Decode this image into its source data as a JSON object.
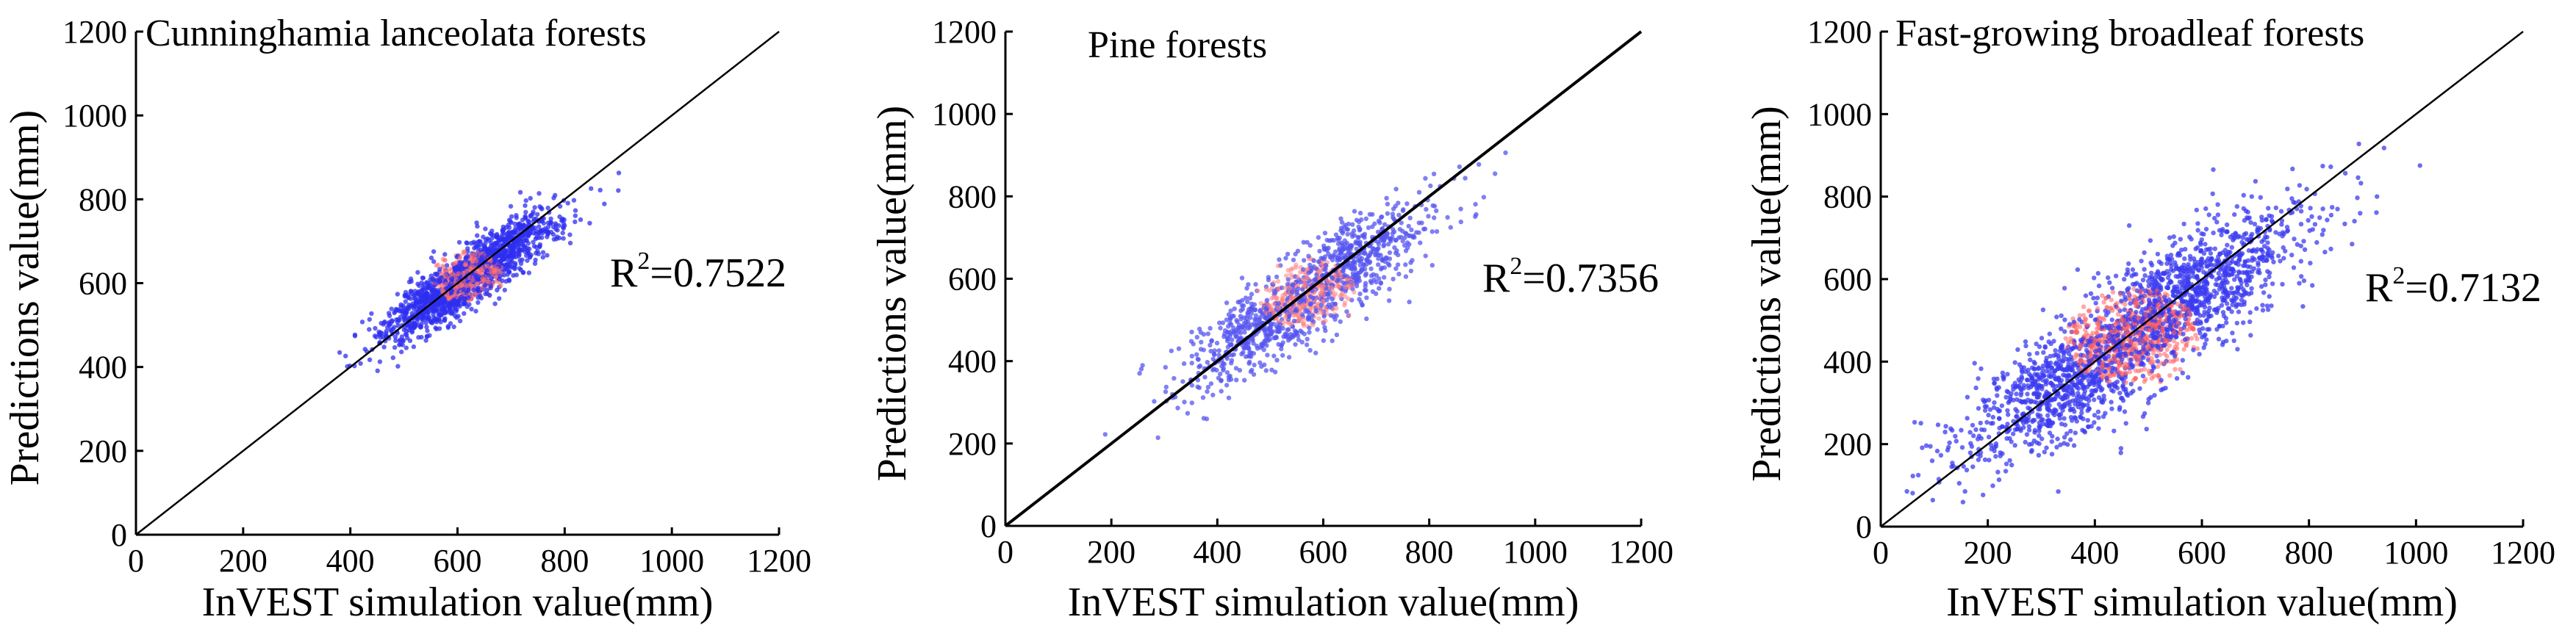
{
  "chart_data": [
    {
      "type": "scatter",
      "title": "Cunninghamia lanceolata forests",
      "xlabel": "InVEST simulation value(mm)",
      "ylabel": "Predictions value(mm)",
      "xlim": [
        0,
        1200
      ],
      "ylim": [
        0,
        1200
      ],
      "xticks": [
        0,
        200,
        400,
        600,
        800,
        1000,
        1200
      ],
      "yticks": [
        0,
        200,
        400,
        600,
        800,
        1000,
        1200
      ],
      "r2_prefix": "R",
      "r2_exp": "2",
      "r2_value": "=0.7522",
      "cluster": {
        "cx": 620,
        "cy": 615,
        "sx": 75,
        "sy": 70,
        "corr": 0.87,
        "n": 1800,
        "seed": 11
      },
      "fit_line": [
        [
          0,
          0
        ],
        [
          1200,
          1200
        ]
      ],
      "point_color": "#2f2ff0",
      "density_color": "#ff7070"
    },
    {
      "type": "scatter",
      "title": "Pine forests",
      "xlabel": "InVEST simulation value(mm)",
      "ylabel": "Predictions value(mm)",
      "xlim": [
        0,
        1200
      ],
      "ylim": [
        0,
        1200
      ],
      "xticks": [
        0,
        200,
        400,
        600,
        800,
        1000,
        1200
      ],
      "yticks": [
        0,
        200,
        400,
        600,
        800,
        1000,
        1200
      ],
      "r2_prefix": "R",
      "r2_exp": "2",
      "r2_value": "=0.7356",
      "cluster": {
        "cx": 570,
        "cy": 560,
        "sx": 105,
        "sy": 100,
        "corr": 0.86,
        "n": 1400,
        "seed": 23
      },
      "fit_line": [
        [
          0,
          0
        ],
        [
          1200,
          1200
        ]
      ],
      "point_color": "#5555f0",
      "density_color": "#ff8080"
    },
    {
      "type": "scatter",
      "title": "Fast-growing broadleaf forests",
      "xlabel": "InVEST simulation value(mm)",
      "ylabel": "Predictions value(mm)",
      "xlim": [
        0,
        1200
      ],
      "ylim": [
        0,
        1200
      ],
      "xticks": [
        0,
        200,
        400,
        600,
        800,
        1000,
        1200
      ],
      "yticks": [
        0,
        200,
        400,
        600,
        800,
        1000,
        1200
      ],
      "r2_prefix": "R",
      "r2_exp": "2",
      "r2_value": "=0.7132",
      "cluster": {
        "cx": 470,
        "cy": 460,
        "sx": 140,
        "sy": 135,
        "corr": 0.85,
        "n": 2600,
        "seed": 37
      },
      "fit_line": [
        [
          0,
          0
        ],
        [
          1200,
          1200
        ]
      ],
      "point_color": "#3b3bf0",
      "density_color": "#ff6060"
    }
  ]
}
